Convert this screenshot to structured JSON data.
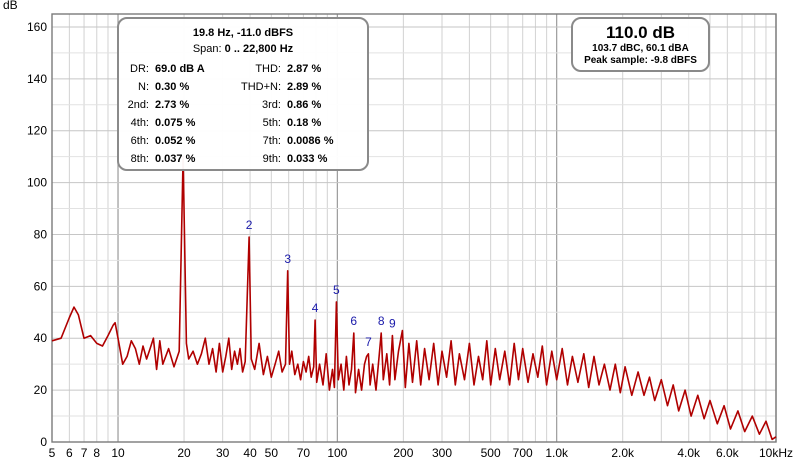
{
  "chart_data": {
    "type": "line",
    "title": "",
    "ylabel": "dB",
    "xlabel": "",
    "xscale": "log",
    "xlim": [
      5,
      10000
    ],
    "ylim": [
      0,
      165
    ],
    "grid": true,
    "line_color": "#b00000",
    "harmonic_label_color": "#1a1aaa",
    "x_tick_labels": [
      "5",
      "6",
      "7",
      "8",
      "10",
      "20",
      "30",
      "40",
      "50",
      "70",
      "100",
      "200",
      "300",
      "500",
      "700",
      "1.0k",
      "2.0k",
      "4.0k",
      "6.0k",
      "10kHz"
    ],
    "x_tick_values": [
      5,
      6,
      7,
      8,
      10,
      20,
      30,
      40,
      50,
      70,
      100,
      200,
      300,
      500,
      700,
      1000,
      2000,
      4000,
      6000,
      10000
    ],
    "y_ticks": [
      0,
      20,
      40,
      60,
      80,
      100,
      120,
      140,
      160
    ],
    "series": [
      {
        "points": [
          [
            5,
            39
          ],
          [
            5.5,
            40
          ],
          [
            6,
            48
          ],
          [
            6.3,
            52
          ],
          [
            6.6,
            49
          ],
          [
            7,
            40
          ],
          [
            7.5,
            41
          ],
          [
            8,
            38
          ],
          [
            8.5,
            37
          ],
          [
            9,
            41
          ],
          [
            9.5,
            45
          ],
          [
            9.7,
            46
          ],
          [
            10,
            40
          ],
          [
            10.5,
            30
          ],
          [
            11,
            33
          ],
          [
            11.5,
            39
          ],
          [
            12,
            36
          ],
          [
            12.5,
            30
          ],
          [
            13,
            37
          ],
          [
            13.5,
            32
          ],
          [
            14,
            36
          ],
          [
            14.5,
            40
          ],
          [
            15,
            28
          ],
          [
            15.5,
            39
          ],
          [
            16,
            30
          ],
          [
            17,
            36
          ],
          [
            18,
            29
          ],
          [
            19,
            35
          ],
          [
            19.8,
            110
          ],
          [
            20.5,
            38
          ],
          [
            21,
            32
          ],
          [
            22,
            35
          ],
          [
            23,
            30
          ],
          [
            24,
            34
          ],
          [
            25,
            40
          ],
          [
            26,
            30
          ],
          [
            27,
            36
          ],
          [
            28,
            27
          ],
          [
            29,
            38
          ],
          [
            30,
            27
          ],
          [
            31,
            33
          ],
          [
            32,
            40
          ],
          [
            33,
            28
          ],
          [
            34,
            35
          ],
          [
            35,
            30
          ],
          [
            36,
            36
          ],
          [
            37,
            27
          ],
          [
            38,
            31
          ],
          [
            39.6,
            79
          ],
          [
            40.5,
            32
          ],
          [
            42,
            28
          ],
          [
            44,
            38
          ],
          [
            46,
            26
          ],
          [
            48,
            33
          ],
          [
            50,
            25
          ],
          [
            52,
            30
          ],
          [
            54,
            35
          ],
          [
            56,
            27
          ],
          [
            58,
            30
          ],
          [
            59.4,
            66
          ],
          [
            60.5,
            30
          ],
          [
            62,
            35
          ],
          [
            64,
            26
          ],
          [
            66,
            30
          ],
          [
            68,
            24
          ],
          [
            70,
            31
          ],
          [
            72,
            27
          ],
          [
            74,
            33
          ],
          [
            76,
            25
          ],
          [
            78,
            29
          ],
          [
            79.2,
            47
          ],
          [
            80.5,
            23
          ],
          [
            83,
            30
          ],
          [
            86,
            22
          ],
          [
            89,
            34
          ],
          [
            92,
            20
          ],
          [
            95,
            28
          ],
          [
            97,
            21
          ],
          [
            99,
            54
          ],
          [
            101,
            24
          ],
          [
            104,
            30
          ],
          [
            107,
            20
          ],
          [
            110,
            33
          ],
          [
            113,
            22
          ],
          [
            116,
            28
          ],
          [
            118.8,
            42
          ],
          [
            121,
            19
          ],
          [
            125,
            28
          ],
          [
            129,
            20
          ],
          [
            133,
            30
          ],
          [
            136,
            33
          ],
          [
            138.6,
            34
          ],
          [
            141,
            22
          ],
          [
            145,
            30
          ],
          [
            150,
            20
          ],
          [
            155,
            33
          ],
          [
            158.4,
            42
          ],
          [
            162,
            24
          ],
          [
            168,
            34
          ],
          [
            173,
            22
          ],
          [
            178.2,
            41
          ],
          [
            183,
            24
          ],
          [
            190,
            35
          ],
          [
            198,
            43
          ],
          [
            204,
            21
          ],
          [
            212,
            38
          ],
          [
            220,
            23
          ],
          [
            230,
            39
          ],
          [
            240,
            22
          ],
          [
            250,
            36
          ],
          [
            262,
            24
          ],
          [
            275,
            38
          ],
          [
            288,
            22
          ],
          [
            300,
            35
          ],
          [
            315,
            25
          ],
          [
            330,
            39
          ],
          [
            345,
            22
          ],
          [
            360,
            34
          ],
          [
            380,
            24
          ],
          [
            400,
            38
          ],
          [
            420,
            22
          ],
          [
            440,
            33
          ],
          [
            460,
            24
          ],
          [
            480,
            39
          ],
          [
            500,
            22
          ],
          [
            525,
            36
          ],
          [
            550,
            24
          ],
          [
            580,
            35
          ],
          [
            610,
            22
          ],
          [
            640,
            38
          ],
          [
            670,
            24
          ],
          [
            700,
            36
          ],
          [
            740,
            23
          ],
          [
            780,
            34
          ],
          [
            820,
            25
          ],
          [
            860,
            37
          ],
          [
            900,
            22
          ],
          [
            950,
            35
          ],
          [
            1000,
            24
          ],
          [
            1060,
            36
          ],
          [
            1120,
            22
          ],
          [
            1180,
            33
          ],
          [
            1250,
            23
          ],
          [
            1330,
            34
          ],
          [
            1400,
            21
          ],
          [
            1480,
            33
          ],
          [
            1560,
            22
          ],
          [
            1650,
            30
          ],
          [
            1750,
            20
          ],
          [
            1850,
            30
          ],
          [
            1950,
            19
          ],
          [
            2050,
            29
          ],
          [
            2200,
            18
          ],
          [
            2350,
            27
          ],
          [
            2500,
            18
          ],
          [
            2650,
            25
          ],
          [
            2800,
            16
          ],
          [
            3000,
            24
          ],
          [
            3200,
            14
          ],
          [
            3400,
            22
          ],
          [
            3600,
            12
          ],
          [
            3850,
            20
          ],
          [
            4100,
            10
          ],
          [
            4400,
            18
          ],
          [
            4700,
            9
          ],
          [
            5000,
            16
          ],
          [
            5400,
            7
          ],
          [
            5800,
            14
          ],
          [
            6200,
            5
          ],
          [
            6700,
            12
          ],
          [
            7200,
            4
          ],
          [
            7800,
            10
          ],
          [
            8400,
            3
          ],
          [
            9000,
            8
          ],
          [
            9600,
            1
          ],
          [
            10000,
            2
          ]
        ]
      }
    ],
    "harmonics": [
      {
        "label": "2",
        "x": 39.6,
        "y": 79
      },
      {
        "label": "3",
        "x": 59.4,
        "y": 66
      },
      {
        "label": "4",
        "x": 79.2,
        "y": 47
      },
      {
        "label": "5",
        "x": 99,
        "y": 54
      },
      {
        "label": "6",
        "x": 118.8,
        "y": 42
      },
      {
        "label": "7",
        "x": 138.6,
        "y": 34
      },
      {
        "label": "8",
        "x": 158.4,
        "y": 42
      },
      {
        "label": "9",
        "x": 178.2,
        "y": 41
      }
    ]
  },
  "stats": {
    "cursor": "19.8 Hz, -11.0 dBFS",
    "span_label": "Span:",
    "span_value": "0 .. 22,800 Hz",
    "rows": [
      {
        "l1": "DR:",
        "v1": "69.0 dB A",
        "l2": "THD:",
        "v2": "2.87 %"
      },
      {
        "l1": "N:",
        "v1": "0.30 %",
        "l2": "THD+N:",
        "v2": "2.89 %"
      },
      {
        "l1": "2nd:",
        "v1": "2.73 %",
        "l2": "3rd:",
        "v2": "0.86 %"
      },
      {
        "l1": "4th:",
        "v1": "0.075 %",
        "l2": "5th:",
        "v2": "0.18 %"
      },
      {
        "l1": "6th:",
        "v1": "0.052 %",
        "l2": "7th:",
        "v2": "0.0086 %"
      },
      {
        "l1": "8th:",
        "v1": "0.037 %",
        "l2": "9th:",
        "v2": "0.033 %"
      }
    ]
  },
  "level": {
    "main": "110.0 dB",
    "weighted": "103.7 dBC, 60.1 dBA",
    "peak": "Peak sample: -9.8 dBFS"
  }
}
